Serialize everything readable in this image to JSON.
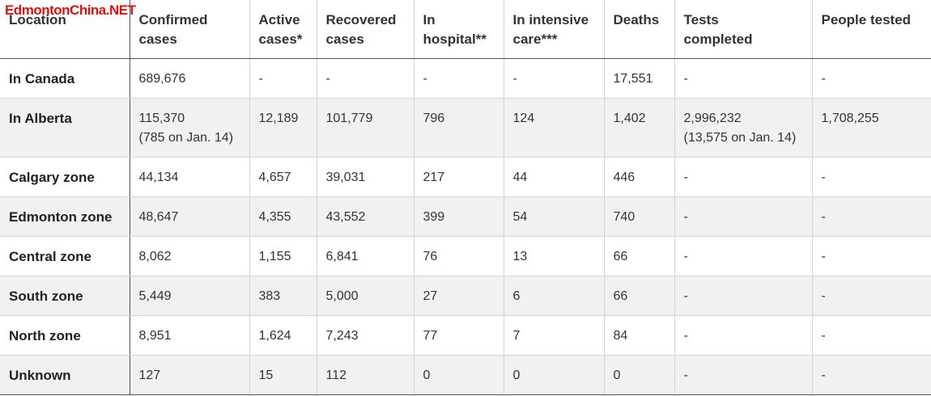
{
  "watermark": "EdmontonChina.NET",
  "table": {
    "headers": [
      "Location",
      "Confirmed\ncases",
      "Active\ncases*",
      "Recovered\ncases",
      "In\nhospital**",
      "In intensive\ncare***",
      "Deaths",
      "Tests\ncompleted",
      "People tested"
    ],
    "rows": [
      [
        "In Canada",
        "689,676",
        "-",
        "-",
        "-",
        "-",
        "17,551",
        "-",
        "-"
      ],
      [
        "In Alberta",
        "115,370\n(785 on Jan. 14)",
        "12,189",
        "101,779",
        "796",
        "124",
        "1,402",
        "2,996,232\n(13,575 on Jan. 14)",
        "1,708,255"
      ],
      [
        "Calgary zone",
        "44,134",
        "4,657",
        "39,031",
        "217",
        "44",
        "446",
        "-",
        "-"
      ],
      [
        "Edmonton zone",
        "48,647",
        "4,355",
        "43,552",
        "399",
        "54",
        "740",
        "-",
        "-"
      ],
      [
        "Central zone",
        "8,062",
        "1,155",
        "6,841",
        "76",
        "13",
        "66",
        "-",
        "-"
      ],
      [
        "South zone",
        "5,449",
        "383",
        "5,000",
        "27",
        "6",
        "66",
        "-",
        "-"
      ],
      [
        "North zone",
        "8,951",
        "1,624",
        "7,243",
        "77",
        "7",
        "84",
        "-",
        "-"
      ],
      [
        "Unknown",
        "127",
        "15",
        "112",
        "0",
        "0",
        "0",
        "-",
        "-"
      ]
    ]
  }
}
